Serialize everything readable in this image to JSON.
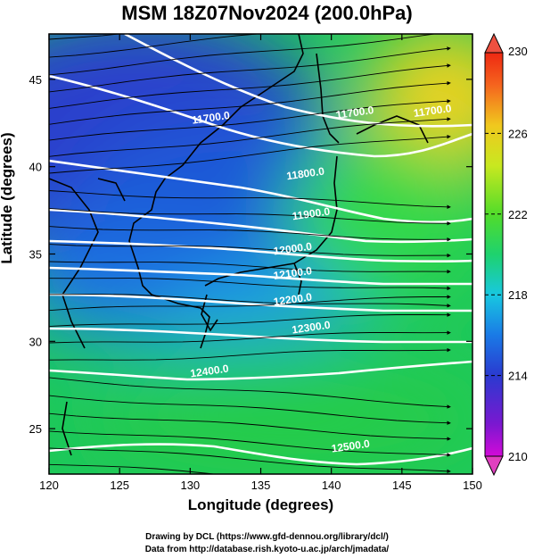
{
  "title": "MSM 18Z07Nov2024 (200.0hPa)",
  "credits": {
    "line1": "Drawing by DCL (https://www.gfd-dennou.org/library/dcl/)",
    "line2": "Data from http://database.rish.kyoto-u.ac.jp/arch/jmadata/"
  },
  "chart_data": {
    "type": "heatmap",
    "title": "MSM 18Z07Nov2024 (200.0hPa)",
    "xlabel": "Longitude (degrees)",
    "ylabel": "Latitude  (degrees)",
    "xlim": [
      120,
      150
    ],
    "ylim": [
      22.4,
      47.6
    ],
    "x_ticks": [
      120,
      125,
      130,
      135,
      140,
      145,
      150
    ],
    "y_ticks": [
      25,
      30,
      35,
      40,
      45
    ],
    "colorbar": {
      "min": 210,
      "max": 230,
      "ticks": [
        210,
        214,
        218,
        222,
        226,
        230
      ],
      "colors": [
        "#d20ad8",
        "#3c18c8",
        "#1a7ae6",
        "#18c8e0",
        "#1ed26e",
        "#6ae226",
        "#e6ea1e",
        "#f58c1e",
        "#ee2812"
      ]
    },
    "temperature_field": [
      {
        "lon": 125,
        "lat": 45,
        "value": 213.5
      },
      {
        "lon": 130,
        "lat": 40,
        "value": 214.0
      },
      {
        "lon": 147,
        "lat": 45,
        "value": 226.0
      },
      {
        "lon": 145,
        "lat": 38,
        "value": 222.0
      },
      {
        "lon": 135,
        "lat": 33,
        "value": 215.5
      },
      {
        "lon": 125,
        "lat": 28,
        "value": 219.0
      },
      {
        "lon": 135,
        "lat": 24,
        "value": 222.0
      }
    ],
    "contour_labels": [
      {
        "text": "11700.0",
        "lon": 131.5,
        "lat": 42.6
      },
      {
        "text": "11700.0",
        "lon": 141.7,
        "lat": 42.9
      },
      {
        "text": "11700.0",
        "lon": 147.2,
        "lat": 43.0
      },
      {
        "text": "11800.0",
        "lon": 138.2,
        "lat": 39.4
      },
      {
        "text": "11900.0",
        "lon": 138.6,
        "lat": 37.1
      },
      {
        "text": "12000.0",
        "lon": 137.3,
        "lat": 35.1
      },
      {
        "text": "12100.0",
        "lon": 137.3,
        "lat": 33.7
      },
      {
        "text": "12200.0",
        "lon": 137.3,
        "lat": 32.2
      },
      {
        "text": "12300.0",
        "lon": 138.6,
        "lat": 30.6
      },
      {
        "text": "12400.0",
        "lon": 131.4,
        "lat": 28.1
      },
      {
        "text": "12500.0",
        "lon": 141.4,
        "lat": 23.8
      }
    ]
  }
}
